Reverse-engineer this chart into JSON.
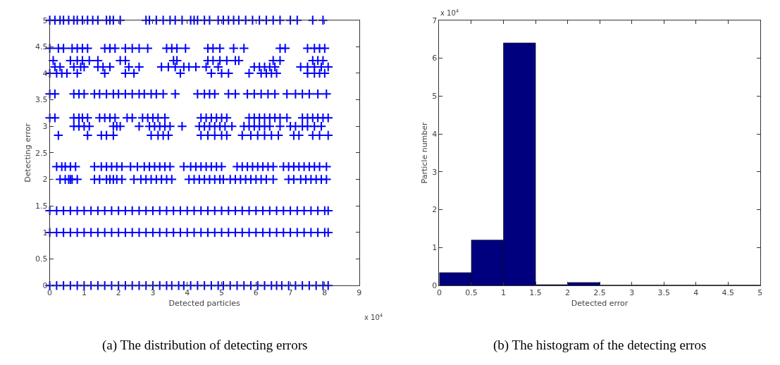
{
  "chart_data": [
    {
      "type": "scatter",
      "xlabel": "Detected particles",
      "ylabel": "Detecting error",
      "marker": "cross",
      "xlim": [
        0,
        9
      ],
      "ylim": [
        0,
        5
      ],
      "xticks": [
        0,
        1,
        2,
        3,
        4,
        5,
        6,
        7,
        8,
        9
      ],
      "yticks": [
        0,
        0.5,
        1,
        1.5,
        2,
        2.5,
        3,
        3.5,
        4,
        4.5,
        5
      ],
      "annotations": [
        "x 10$^{4}$",
        "(a) The distribution of detecting errors"
      ],
      "series": [
        {
          "color": "#0000ff",
          "x": [
            0,
            0.2,
            0.4,
            0.6,
            0.8,
            1.0,
            1.2,
            1.4,
            1.6,
            1.8,
            2.0,
            2.2,
            2.4,
            2.6,
            2.8,
            3.0,
            3.2,
            3.4,
            3.55,
            3.75,
            3.9,
            4.1,
            4.3,
            4.5,
            4.7,
            4.9,
            5.05,
            5.25,
            5.45,
            5.65,
            5.85,
            6.05,
            6.25,
            6.45,
            6.6,
            6.75,
            6.95,
            7.15,
            7.35,
            7.55,
            7.75,
            7.95,
            8.1
          ],
          "values": [
            0,
            0,
            0,
            0,
            0,
            0,
            0,
            0,
            0,
            0,
            0,
            0,
            0,
            0,
            0,
            0,
            0,
            0,
            0,
            0,
            0,
            0,
            0,
            0,
            0,
            0,
            0,
            0,
            0,
            0,
            0,
            0,
            0,
            0,
            0,
            0,
            0,
            0,
            0,
            0,
            0,
            0,
            0
          ]
        },
        {
          "color": "#0000ff",
          "x": [
            0,
            0.2,
            0.4,
            0.6,
            0.8,
            1.0,
            1.2,
            1.4,
            1.6,
            1.8,
            2.0,
            2.2,
            2.4,
            2.6,
            2.8,
            3.0,
            3.2,
            3.4,
            3.6,
            3.8,
            4.0,
            4.2,
            4.4,
            4.6,
            4.8,
            5.0,
            5.2,
            5.4,
            5.6,
            5.8,
            6.0,
            6.2,
            6.4,
            6.6,
            6.8,
            7.0,
            7.2,
            7.4,
            7.6,
            7.8,
            8.0,
            8.1
          ],
          "values": [
            1,
            1,
            1,
            1,
            1,
            1,
            1,
            1,
            1,
            1,
            1,
            1,
            1,
            1,
            1,
            1,
            1,
            1,
            1,
            1,
            1,
            1,
            1,
            1,
            1,
            1,
            1,
            1,
            1,
            1,
            1,
            1,
            1,
            1,
            1,
            1,
            1,
            1,
            1,
            1,
            1,
            1
          ]
        },
        {
          "color": "#0000ff",
          "x": [
            0,
            0.2,
            0.4,
            0.6,
            0.8,
            1.0,
            1.2,
            1.4,
            1.6,
            1.8,
            2.0,
            2.2,
            2.4,
            2.6,
            2.8,
            3.0,
            3.2,
            3.4,
            3.6,
            3.8,
            4.0,
            4.2,
            4.4,
            4.6,
            4.8,
            5.0,
            5.2,
            5.4,
            5.6,
            5.8,
            6.0,
            6.2,
            6.4,
            6.6,
            6.8,
            7.0,
            7.2,
            7.4,
            7.6,
            7.8,
            8.0,
            8.1
          ],
          "values": [
            1.41,
            1.41,
            1.41,
            1.41,
            1.41,
            1.41,
            1.41,
            1.41,
            1.41,
            1.41,
            1.41,
            1.41,
            1.41,
            1.41,
            1.41,
            1.41,
            1.41,
            1.41,
            1.41,
            1.41,
            1.41,
            1.41,
            1.41,
            1.41,
            1.41,
            1.41,
            1.41,
            1.41,
            1.41,
            1.41,
            1.41,
            1.41,
            1.41,
            1.41,
            1.41,
            1.41,
            1.41,
            1.41,
            1.41,
            1.41,
            1.41,
            1.41
          ]
        },
        {
          "color": "#0000ff",
          "x": [
            0.3,
            0.45,
            0.55,
            0.6,
            0.65,
            0.8,
            1.3,
            1.45,
            1.65,
            1.75,
            1.85,
            1.95,
            2.1,
            2.45,
            2.65,
            2.8,
            2.95,
            3.1,
            3.25,
            3.4,
            3.55,
            4.05,
            4.2,
            4.35,
            4.5,
            4.65,
            4.8,
            4.95,
            5.05,
            5.25,
            5.4,
            5.55,
            5.7,
            5.85,
            6.0,
            6.15,
            6.3,
            6.5,
            6.95,
            7.1,
            7.3,
            7.45,
            7.6,
            7.75,
            7.9,
            8.05
          ],
          "values": [
            2,
            2,
            2,
            2,
            2,
            2,
            2,
            2,
            2,
            2,
            2,
            2,
            2,
            2,
            2,
            2,
            2,
            2,
            2,
            2,
            2,
            2,
            2,
            2,
            2,
            2,
            2,
            2,
            2,
            2,
            2,
            2,
            2,
            2,
            2,
            2,
            2,
            2,
            2,
            2,
            2,
            2,
            2,
            2,
            2,
            2
          ]
        },
        {
          "color": "#0000ff",
          "x": [
            0.2,
            0.35,
            0.45,
            0.6,
            0.75,
            1.3,
            1.5,
            1.65,
            1.8,
            1.95,
            2.1,
            2.35,
            2.55,
            2.75,
            2.9,
            3.05,
            3.2,
            3.35,
            3.5,
            3.9,
            4.1,
            4.25,
            4.4,
            4.55,
            4.7,
            4.85,
            5.0,
            5.45,
            5.6,
            5.75,
            5.9,
            6.05,
            6.2,
            6.35,
            6.5,
            6.8,
            6.95,
            7.1,
            7.25,
            7.4,
            7.55,
            7.7,
            7.85,
            8.05
          ],
          "values": [
            2.24,
            2.24,
            2.24,
            2.24,
            2.24,
            2.24,
            2.24,
            2.24,
            2.24,
            2.24,
            2.24,
            2.24,
            2.24,
            2.24,
            2.24,
            2.24,
            2.24,
            2.24,
            2.24,
            2.24,
            2.24,
            2.24,
            2.24,
            2.24,
            2.24,
            2.24,
            2.24,
            2.24,
            2.24,
            2.24,
            2.24,
            2.24,
            2.24,
            2.24,
            2.24,
            2.24,
            2.24,
            2.24,
            2.24,
            2.24,
            2.24,
            2.24,
            2.24,
            2.24
          ]
        },
        {
          "color": "#0000ff",
          "x": [
            0.25,
            1.1,
            1.5,
            1.65,
            1.85,
            2.95,
            3.15,
            3.3,
            3.45,
            4.4,
            4.6,
            4.8,
            5.0,
            5.15,
            5.6,
            5.85,
            6.05,
            6.25,
            6.45,
            6.65,
            7.1,
            7.25,
            7.65,
            7.85,
            8.1
          ],
          "values": [
            2.83,
            2.83,
            2.83,
            2.83,
            2.83,
            2.83,
            2.83,
            2.83,
            2.83,
            2.83,
            2.83,
            2.83,
            2.83,
            2.83,
            2.83,
            2.83,
            2.83,
            2.83,
            2.83,
            2.83,
            2.83,
            2.83,
            2.83,
            2.83,
            2.83
          ]
        },
        {
          "color": "#0000ff",
          "x": [
            0.7,
            0.85,
            1.0,
            1.15,
            1.85,
            1.95,
            2.05,
            2.6,
            2.9,
            3.05,
            3.2,
            3.35,
            3.5,
            3.85,
            4.35,
            4.5,
            4.65,
            4.8,
            4.95,
            5.1,
            5.3,
            5.65,
            5.8,
            5.95,
            6.1,
            6.25,
            6.4,
            6.7,
            7.0,
            7.15,
            7.35,
            7.5,
            7.7,
            7.9
          ],
          "values": [
            3,
            3,
            3,
            3,
            3,
            3,
            3,
            3,
            3,
            3,
            3,
            3,
            3,
            3,
            3,
            3,
            3,
            3,
            3,
            3,
            3,
            3,
            3,
            3,
            3,
            3,
            3,
            3,
            3,
            3,
            3,
            3,
            3,
            3
          ]
        },
        {
          "color": "#0000ff",
          "x": [
            0,
            0.15,
            0.7,
            0.85,
            0.95,
            1.1,
            1.45,
            1.6,
            1.75,
            1.9,
            2.25,
            2.4,
            2.7,
            2.85,
            3.0,
            3.15,
            3.35,
            4.4,
            4.55,
            4.7,
            4.85,
            5.0,
            5.15,
            5.8,
            5.95,
            6.1,
            6.25,
            6.4,
            6.55,
            6.7,
            6.9,
            7.35,
            7.5,
            7.65,
            7.8,
            7.95,
            8.1
          ],
          "values": [
            3.16,
            3.16,
            3.16,
            3.16,
            3.16,
            3.16,
            3.16,
            3.16,
            3.16,
            3.16,
            3.16,
            3.16,
            3.16,
            3.16,
            3.16,
            3.16,
            3.16,
            3.16,
            3.16,
            3.16,
            3.16,
            3.16,
            3.16,
            3.16,
            3.16,
            3.16,
            3.16,
            3.16,
            3.16,
            3.16,
            3.16,
            3.16,
            3.16,
            3.16,
            3.16,
            3.16,
            3.16
          ]
        },
        {
          "color": "#0000ff",
          "x": [
            0,
            0.15,
            0.7,
            0.85,
            1.0,
            1.3,
            1.45,
            1.65,
            1.85,
            2.0,
            2.2,
            2.4,
            2.6,
            2.75,
            2.95,
            3.1,
            3.3,
            3.65,
            4.3,
            4.5,
            4.65,
            4.8,
            5.2,
            5.4,
            5.75,
            5.95,
            6.15,
            6.35,
            6.55,
            6.9,
            7.15,
            7.35,
            7.55,
            7.8,
            8.05
          ],
          "values": [
            3.61,
            3.61,
            3.61,
            3.61,
            3.61,
            3.61,
            3.61,
            3.61,
            3.61,
            3.61,
            3.61,
            3.61,
            3.61,
            3.61,
            3.61,
            3.61,
            3.61,
            3.61,
            3.61,
            3.61,
            3.61,
            3.61,
            3.61,
            3.61,
            3.61,
            3.61,
            3.61,
            3.61,
            3.61,
            3.61,
            3.61,
            3.61,
            3.61,
            3.61,
            3.61
          ]
        },
        {
          "color": "#0000ff",
          "x": [
            0,
            0.2,
            0.35,
            0.5,
            0.8,
            1.6,
            2.2,
            2.45,
            3.8,
            4.7,
            5.0,
            5.2,
            5.8,
            6.15,
            6.3,
            6.45,
            6.6,
            7.5,
            7.7,
            7.85,
            8.0
          ],
          "values": [
            4,
            4,
            4,
            4,
            4,
            4,
            4,
            4,
            4,
            4,
            4,
            4,
            4,
            4,
            4,
            4,
            4,
            4,
            4,
            4,
            4
          ]
        },
        {
          "color": "#0000ff",
          "x": [
            0.15,
            0.3,
            0.7,
            0.9,
            1.0,
            1.4,
            1.55,
            1.75,
            2.3,
            2.6,
            3.25,
            3.45,
            3.65,
            3.9,
            4.05,
            4.25,
            4.55,
            4.9,
            5.95,
            6.1,
            6.25,
            6.4,
            6.55,
            7.3,
            7.5,
            7.7,
            7.9,
            8.1
          ],
          "values": [
            4.12,
            4.12,
            4.12,
            4.12,
            4.12,
            4.12,
            4.12,
            4.12,
            4.12,
            4.12,
            4.12,
            4.12,
            4.12,
            4.12,
            4.12,
            4.12,
            4.12,
            4.12,
            4.12,
            4.12,
            4.12,
            4.12,
            4.12,
            4.12,
            4.12,
            4.12,
            4.12,
            4.12
          ]
        },
        {
          "color": "#0000ff",
          "x": [
            0.1,
            0.6,
            0.8,
            0.95,
            1.15,
            1.4,
            2.05,
            2.2,
            3.6,
            3.7,
            4.6,
            4.75,
            4.95,
            5.15,
            5.4,
            5.5,
            6.5,
            6.7,
            7.65,
            7.8,
            7.95
          ],
          "values": [
            4.24,
            4.24,
            4.24,
            4.24,
            4.24,
            4.24,
            4.24,
            4.24,
            4.24,
            4.24,
            4.24,
            4.24,
            4.24,
            4.24,
            4.24,
            4.24,
            4.24,
            4.24,
            4.24,
            4.24,
            4.24
          ]
        },
        {
          "color": "#0000ff",
          "x": [
            0,
            0.25,
            0.4,
            0.65,
            0.8,
            0.95,
            1.1,
            1.6,
            1.75,
            1.9,
            2.2,
            2.4,
            2.6,
            2.85,
            3.4,
            3.55,
            3.7,
            3.95,
            4.6,
            4.75,
            4.95,
            5.35,
            5.65,
            6.7,
            6.85,
            7.5,
            7.7,
            7.85,
            8.0
          ],
          "values": [
            4.47,
            4.47,
            4.47,
            4.47,
            4.47,
            4.47,
            4.47,
            4.47,
            4.47,
            4.47,
            4.47,
            4.47,
            4.47,
            4.47,
            4.47,
            4.47,
            4.47,
            4.47,
            4.47,
            4.47,
            4.47,
            4.47,
            4.47,
            4.47,
            4.47,
            4.47,
            4.47,
            4.47,
            4.47
          ]
        },
        {
          "color": "#0000ff",
          "x": [
            0,
            0.15,
            0.3,
            0.4,
            0.55,
            0.7,
            0.8,
            0.95,
            1.1,
            1.25,
            1.4,
            1.65,
            1.75,
            1.85,
            2.05,
            2.8,
            2.9,
            3.1,
            3.3,
            3.5,
            3.65,
            3.85,
            4.1,
            4.2,
            4.3,
            4.5,
            4.65,
            4.9,
            5.05,
            5.2,
            5.35,
            5.5,
            5.7,
            5.9,
            6.1,
            6.3,
            6.5,
            6.7,
            7.0,
            7.2,
            7.65,
            7.95
          ],
          "values": [
            5,
            5,
            5,
            5,
            5,
            5,
            5,
            5,
            5,
            5,
            5,
            5,
            5,
            5,
            5,
            5,
            5,
            5,
            5,
            5,
            5,
            5,
            5,
            5,
            5,
            5,
            5,
            5,
            5,
            5,
            5,
            5,
            5,
            5,
            5,
            5,
            5,
            5,
            5,
            5,
            5,
            5
          ]
        }
      ]
    },
    {
      "type": "histogram",
      "xlabel": "Detected error",
      "ylabel": "Particle number",
      "color": "#00007f",
      "bins": [
        0,
        0.5,
        1,
        1.5,
        2,
        2.5,
        3,
        3.5,
        4,
        4.5,
        5
      ],
      "values": [
        0.34,
        1.2,
        6.4,
        0.02,
        0.08,
        0.01,
        0.01,
        0.01,
        0.01,
        0.01
      ],
      "xlim": [
        0,
        5
      ],
      "ylim": [
        0,
        7
      ],
      "xticks": [
        0,
        0.5,
        1,
        1.5,
        2,
        2.5,
        3,
        3.5,
        4,
        4.5,
        5
      ],
      "yticks": [
        0,
        1,
        2,
        3,
        4,
        5,
        6,
        7
      ],
      "annotations": [
        "x 10$^{4}$",
        "(b) The histogram of the detecting erros"
      ]
    }
  ]
}
